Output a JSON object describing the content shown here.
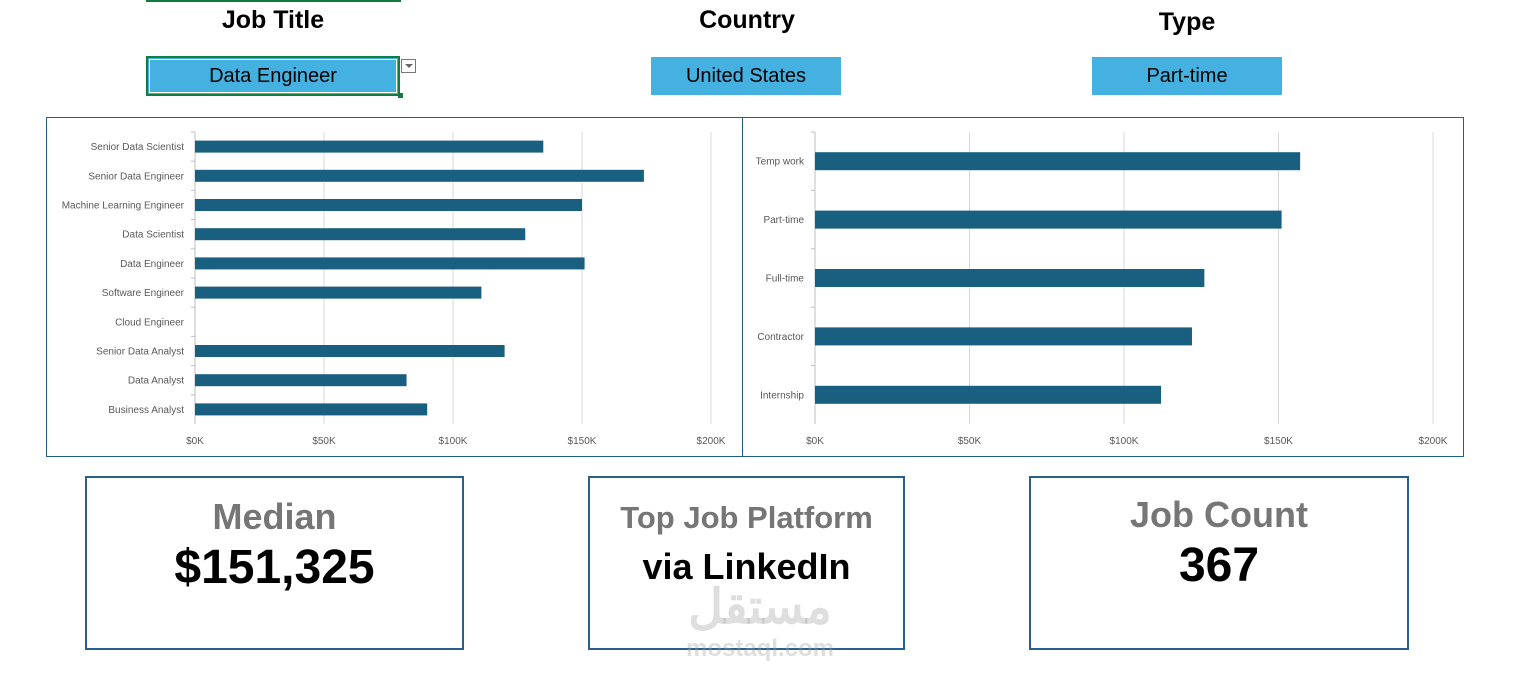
{
  "filters": {
    "job_title": {
      "label": "Job Title",
      "value": "Data Engineer"
    },
    "country": {
      "label": "Country",
      "value": "United States"
    },
    "type": {
      "label": "Type",
      "value": "Part-time"
    }
  },
  "cards": {
    "median": {
      "title": "Median",
      "value": "$151,325"
    },
    "platform": {
      "title": "Top Job Platform",
      "value": "via LinkedIn"
    },
    "count": {
      "title": "Job Count",
      "value": "367"
    }
  },
  "watermark": {
    "arabic": "مستقل",
    "latin": "mostaql.com"
  },
  "colors": {
    "bar": "#185f80",
    "slicer": "#45b1e0",
    "border": "#1f5f8b",
    "selected": "#107c41"
  },
  "chart_data": [
    {
      "type": "bar",
      "orientation": "horizontal",
      "categories": [
        "Senior Data Scientist",
        "Senior Data Engineer",
        "Machine Learning Engineer",
        "Data Scientist",
        "Data Engineer",
        "Software Engineer",
        "Cloud Engineer",
        "Senior Data Analyst",
        "Data Analyst",
        "Business Analyst"
      ],
      "values": [
        135000,
        174000,
        150000,
        128000,
        151000,
        111000,
        null,
        120000,
        82000,
        90000
      ],
      "xlim": [
        0,
        200000
      ],
      "xticks": [
        "$0K",
        "$50K",
        "$100K",
        "$150K",
        "$200K"
      ],
      "grid": true
    },
    {
      "type": "bar",
      "orientation": "horizontal",
      "categories": [
        "Temp work",
        "Part-time",
        "Full-time",
        "Contractor",
        "Internship"
      ],
      "values": [
        157000,
        151000,
        126000,
        122000,
        112000
      ],
      "xlim": [
        0,
        200000
      ],
      "xticks": [
        "$0K",
        "$50K",
        "$100K",
        "$150K",
        "$200K"
      ],
      "grid": true
    }
  ]
}
